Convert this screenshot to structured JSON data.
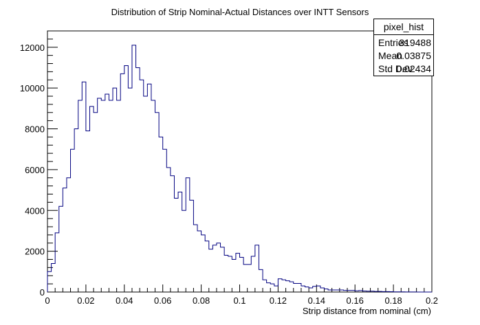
{
  "chart_data": {
    "type": "histogram",
    "title": "Distribution of Strip Nominal-Actual Distances over INTT Sensors",
    "xlabel": "Strip distance from nominal (cm)",
    "ylabel": "",
    "xlim": [
      0,
      0.2
    ],
    "ylim": [
      0,
      12800
    ],
    "bin_width": 0.002,
    "x_ticks": [
      "0",
      "0.02",
      "0.04",
      "0.06",
      "0.08",
      "0.1",
      "0.12",
      "0.14",
      "0.16",
      "0.18",
      "0.2"
    ],
    "x_tick_values": [
      0,
      0.02,
      0.04,
      0.06,
      0.08,
      0.1,
      0.12,
      0.14,
      0.16,
      0.18,
      0.2
    ],
    "y_ticks": [
      "0",
      "2000",
      "4000",
      "6000",
      "8000",
      "10000",
      "12000"
    ],
    "y_tick_values": [
      0,
      2000,
      4000,
      6000,
      8000,
      10000,
      12000
    ],
    "series": [
      {
        "values": [
          1000,
          1400,
          2900,
          4200,
          5100,
          5600,
          7000,
          8000,
          9400,
          10300,
          7900,
          9100,
          8800,
          9500,
          9400,
          9700,
          9400,
          10000,
          9400,
          10700,
          11100,
          10000,
          12100,
          11000,
          10400,
          9600,
          10200,
          9400,
          8800,
          7600,
          7000,
          6100,
          5700,
          4600,
          4900,
          4000,
          5600,
          4500,
          3300,
          3000,
          2800,
          2500,
          2100,
          2300,
          2400,
          2200,
          1800,
          1750,
          1600,
          1900,
          1700,
          1350,
          1350,
          1750,
          2300,
          1100,
          600,
          450,
          400,
          300,
          650,
          600,
          550,
          500,
          420,
          420,
          300,
          250,
          200,
          280,
          300,
          200,
          150,
          100,
          100,
          100,
          100,
          80,
          80,
          80,
          60,
          70,
          50,
          40,
          40,
          30,
          30,
          20,
          20,
          15,
          10,
          10,
          8,
          5,
          5,
          3,
          2,
          2,
          1,
          1
        ],
        "color": "#000080"
      }
    ],
    "stats_box": {
      "title": "pixel_hist",
      "rows": [
        {
          "label": "Entries",
          "value": "319488"
        },
        {
          "label": "Mean",
          "value": "0.03875"
        },
        {
          "label": "Std Dev",
          "value": "0.02434"
        }
      ]
    }
  }
}
